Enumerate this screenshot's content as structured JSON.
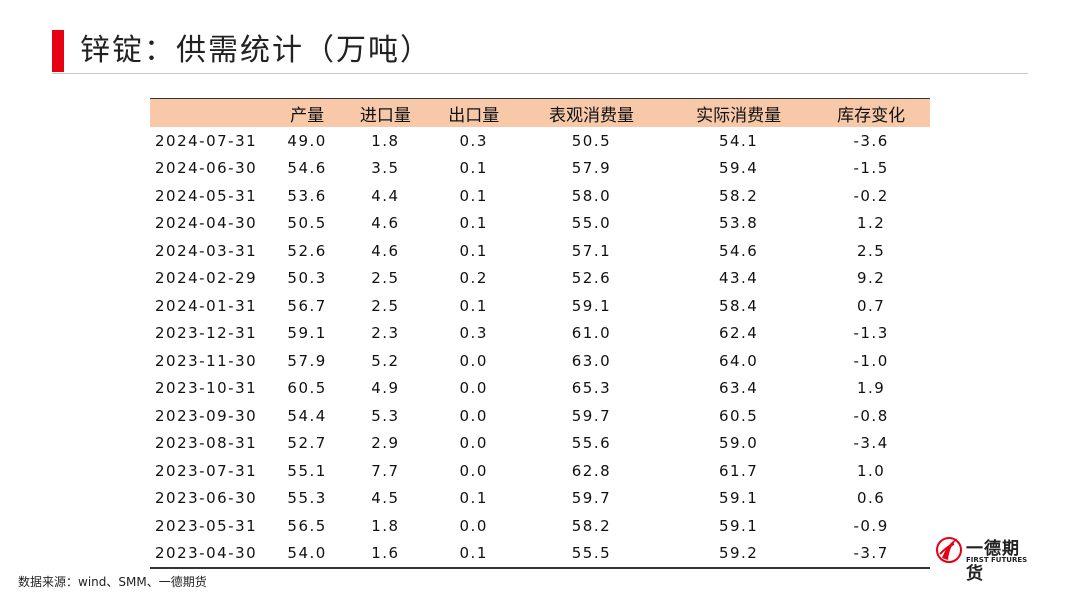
{
  "header": {
    "title": "锌锭：供需统计（万吨）"
  },
  "table": {
    "columns": [
      "产量",
      "进口量",
      "出口量",
      "表观消费量",
      "实际消费量",
      "库存变化"
    ],
    "rows": [
      [
        "2024-07-31",
        "49.0",
        "1.8",
        "0.3",
        "50.5",
        "54.1",
        "-3.6"
      ],
      [
        "2024-06-30",
        "54.6",
        "3.5",
        "0.1",
        "57.9",
        "59.4",
        "-1.5"
      ],
      [
        "2024-05-31",
        "53.6",
        "4.4",
        "0.1",
        "58.0",
        "58.2",
        "-0.2"
      ],
      [
        "2024-04-30",
        "50.5",
        "4.6",
        "0.1",
        "55.0",
        "53.8",
        "1.2"
      ],
      [
        "2024-03-31",
        "52.6",
        "4.6",
        "0.1",
        "57.1",
        "54.6",
        "2.5"
      ],
      [
        "2024-02-29",
        "50.3",
        "2.5",
        "0.2",
        "52.6",
        "43.4",
        "9.2"
      ],
      [
        "2024-01-31",
        "56.7",
        "2.5",
        "0.1",
        "59.1",
        "58.4",
        "0.7"
      ],
      [
        "2023-12-31",
        "59.1",
        "2.3",
        "0.3",
        "61.0",
        "62.4",
        "-1.3"
      ],
      [
        "2023-11-30",
        "57.9",
        "5.2",
        "0.0",
        "63.0",
        "64.0",
        "-1.0"
      ],
      [
        "2023-10-31",
        "60.5",
        "4.9",
        "0.0",
        "65.3",
        "63.4",
        "1.9"
      ],
      [
        "2023-09-30",
        "54.4",
        "5.3",
        "0.0",
        "59.7",
        "60.5",
        "-0.8"
      ],
      [
        "2023-08-31",
        "52.7",
        "2.9",
        "0.0",
        "55.6",
        "59.0",
        "-3.4"
      ],
      [
        "2023-07-31",
        "55.1",
        "7.7",
        "0.0",
        "62.8",
        "61.7",
        "1.0"
      ],
      [
        "2023-06-30",
        "55.3",
        "4.5",
        "0.1",
        "59.7",
        "59.1",
        "0.6"
      ],
      [
        "2023-05-31",
        "56.5",
        "1.8",
        "0.0",
        "58.2",
        "59.1",
        "-0.9"
      ],
      [
        "2023-04-30",
        "54.0",
        "1.6",
        "0.1",
        "55.5",
        "59.2",
        "-3.7"
      ]
    ]
  },
  "source": "数据来源：wind、SMM、一德期货",
  "logo": {
    "name": "一德期货",
    "subtitle": "FIRST FUTURES"
  }
}
